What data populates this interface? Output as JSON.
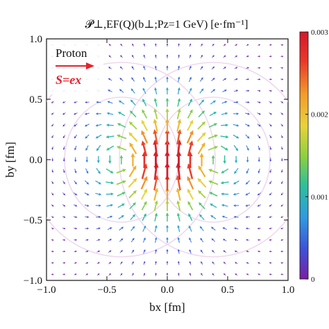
{
  "chart_data": {
    "type": "quiver",
    "title": "𝓟⊥,EF(Q)(b⊥;Pz=1 GeV) [e·fm⁻¹]",
    "xlabel": "bx [fm]",
    "ylabel": "by [fm]",
    "xlim": [
      -1.0,
      1.0
    ],
    "ylim": [
      -1.0,
      1.0
    ],
    "x_ticks": [
      "−1.0",
      "−0.5",
      "0.0",
      "0.5",
      "1.0"
    ],
    "y_ticks": [
      "−1.0",
      "−0.5",
      "0.0",
      "0.5",
      "1.0"
    ],
    "x_tick_values": [
      -1.0,
      -0.5,
      0.0,
      0.5,
      1.0
    ],
    "y_tick_values": [
      -1.0,
      -0.5,
      0.0,
      0.5,
      1.0
    ],
    "grid": false,
    "colorbar": {
      "range": [
        0,
        0.003
      ],
      "ticks": [
        "0",
        "0.001",
        "0.002",
        "0.003"
      ],
      "tick_values": [
        0,
        0.001,
        0.002,
        0.003
      ],
      "colormap": "rainbow",
      "colors": [
        "#7a1fa2",
        "#3f51d8",
        "#2f9be0",
        "#2fbf9a",
        "#8fd13f",
        "#e8d33a",
        "#f39a2b",
        "#e83a2a",
        "#d4192a"
      ]
    },
    "field": {
      "description": "dipole-like vector field with arrows colored by magnitude",
      "x_range": [
        -0.95,
        0.95
      ],
      "y_range": [
        -0.95,
        0.95
      ],
      "grid_points": 21,
      "max_magnitude": 0.003
    },
    "annotations": {
      "label": "Proton",
      "spin_label": "S=ex",
      "spin_arrow_color": "#e8202a"
    }
  }
}
